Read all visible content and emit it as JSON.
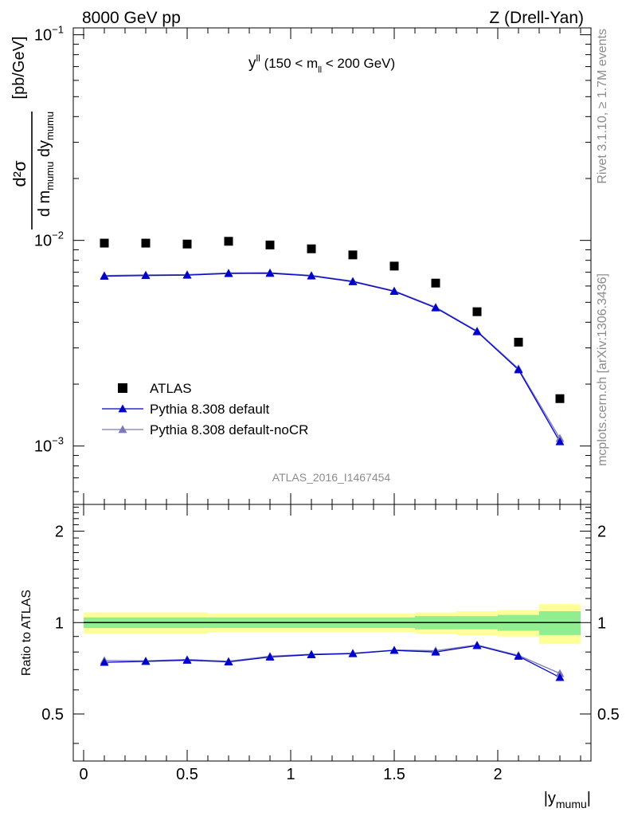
{
  "header": {
    "left": "8000 GeV pp",
    "right": "Z (Drell-Yan)"
  },
  "plot_title": {
    "main": "y",
    "main_sup": "ll",
    "rest_a": " (150 < m",
    "rest_sub": "ll",
    "rest_b": " < 200 GeV)"
  },
  "watermark": "ATLAS_2016_I1467454",
  "side_text": {
    "rivet": "Rivet 3.1.10, ≥ 1.7M events",
    "mcplots": "mcplots.cern.ch [arXiv:1306.3436]"
  },
  "axes": {
    "ylabel_main": {
      "num": "d²σ",
      "den_a": "d m",
      "den_sub": "mumu",
      "den_b": " dy",
      "den_sub2": "mumu",
      "unit": "[pb/GeV]"
    },
    "ylabel_ratio": "Ratio to ATLAS",
    "xlabel": "|y",
    "xlabel_sub": "mumu",
    "xlabel_end": "|",
    "main_yticks": [
      {
        "value": 0.1,
        "base": "10",
        "exp": "−1"
      },
      {
        "value": 0.01,
        "base": "10",
        "exp": "−2"
      },
      {
        "value": 0.001,
        "base": "10",
        "exp": "−3"
      }
    ],
    "ratio_yticks": [
      {
        "value": 0.5,
        "label": "0.5"
      },
      {
        "value": 1,
        "label": "1"
      },
      {
        "value": 2,
        "label": "2"
      }
    ],
    "xticks": [
      {
        "value": 0,
        "label": "0"
      },
      {
        "value": 0.5,
        "label": "0.5"
      },
      {
        "value": 1,
        "label": "1"
      },
      {
        "value": 1.5,
        "label": "1.5"
      },
      {
        "value": 2,
        "label": "2"
      }
    ]
  },
  "legend": [
    {
      "label": "ATLAS",
      "style": "data"
    },
    {
      "label": "Pythia 8.308 default",
      "style": "default"
    },
    {
      "label": "Pythia 8.308 default-noCR",
      "style": "nocr"
    }
  ],
  "colors": {
    "data": "#000000",
    "default": "#0000cc",
    "nocr": "#7b7bb8",
    "band_inner": "#90ee90",
    "band_outer": "#ffff99"
  },
  "chart_data": {
    "type": "scatter",
    "x_scale": "linear",
    "y_scale": "log",
    "xlim": [
      -0.05,
      2.45
    ],
    "ylim": [
      0.00052,
      0.108
    ],
    "ratio_ylim": [
      0.35,
      2.45
    ],
    "ratio_yscale": "log",
    "x_edges": [
      0,
      0.2,
      0.4,
      0.6,
      0.8,
      1.0,
      1.2,
      1.4,
      1.6,
      1.8,
      2.0,
      2.2,
      2.4
    ],
    "x": [
      0.1,
      0.3,
      0.5,
      0.7,
      0.9,
      1.1,
      1.3,
      1.5,
      1.7,
      1.9,
      2.1,
      2.3
    ],
    "series": [
      {
        "name": "ATLAS",
        "values": [
          0.0097,
          0.0097,
          0.0096,
          0.0099,
          0.0095,
          0.0091,
          0.0085,
          0.0075,
          0.0062,
          0.0045,
          0.0032,
          0.0017
        ]
      },
      {
        "name": "Pythia 8.308 default",
        "values": [
          0.0067,
          0.00675,
          0.00678,
          0.0069,
          0.00692,
          0.00672,
          0.0063,
          0.00565,
          0.0047,
          0.0036,
          0.00235,
          0.00105
        ]
      },
      {
        "name": "Pythia 8.308 default-noCR",
        "values": [
          0.00675,
          0.0068,
          0.00682,
          0.00695,
          0.00697,
          0.00676,
          0.00634,
          0.00569,
          0.00474,
          0.00363,
          0.00238,
          0.00109
        ]
      }
    ],
    "ratio_series": [
      {
        "name": "Pythia 8.308 default",
        "values": [
          0.74,
          0.745,
          0.752,
          0.742,
          0.77,
          0.784,
          0.79,
          0.81,
          0.8,
          0.84,
          0.775,
          0.66
        ]
      },
      {
        "name": "Pythia 8.308 default-noCR",
        "values": [
          0.75,
          0.748,
          0.756,
          0.746,
          0.775,
          0.787,
          0.793,
          0.812,
          0.808,
          0.844,
          0.78,
          0.68
        ]
      }
    ],
    "ratio_band_inner": [
      0.04,
      0.04,
      0.04,
      0.04,
      0.04,
      0.04,
      0.04,
      0.04,
      0.05,
      0.05,
      0.06,
      0.09
    ],
    "ratio_band_outer": [
      0.08,
      0.08,
      0.08,
      0.07,
      0.07,
      0.07,
      0.07,
      0.07,
      0.08,
      0.09,
      0.1,
      0.15
    ]
  }
}
